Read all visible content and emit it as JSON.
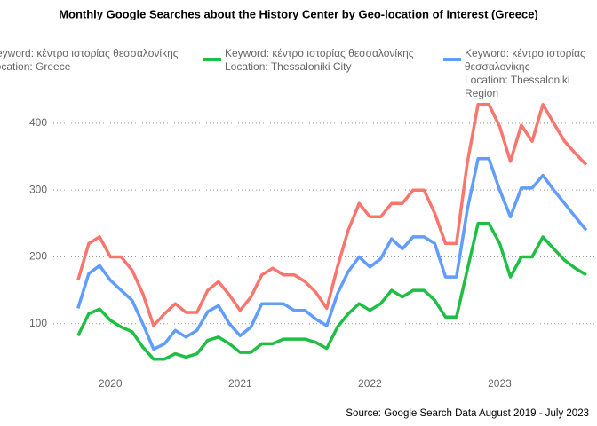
{
  "chart_data": {
    "type": "line",
    "title": "Monthly Google Searches about the History Center by Geo-location of Interest (Greece)",
    "caption": "Source: Google Search Data August 2019 - July 2023",
    "x": [
      2019.75,
      2019.833,
      2019.917,
      2020,
      2020.083,
      2020.167,
      2020.25,
      2020.333,
      2020.417,
      2020.5,
      2020.583,
      2020.667,
      2020.75,
      2020.833,
      2020.917,
      2021,
      2021.083,
      2021.167,
      2021.25,
      2021.333,
      2021.417,
      2021.5,
      2021.583,
      2021.667,
      2021.75,
      2021.833,
      2021.917,
      2022,
      2022.083,
      2022.167,
      2022.25,
      2022.333,
      2022.417,
      2022.5,
      2022.583,
      2022.667,
      2022.75,
      2022.833,
      2022.917,
      2023,
      2023.083,
      2023.167,
      2023.25,
      2023.333,
      2023.417,
      2023.5,
      2023.583,
      2023.667
    ],
    "xlim": [
      2019.56,
      2023.75
    ],
    "xticks": [
      2020,
      2021,
      2022,
      2023
    ],
    "ylim": [
      20,
      445
    ],
    "yticks": [
      100,
      200,
      300,
      400
    ],
    "grid": true,
    "series": [
      {
        "name": "Keyword: κέντρο ιστορίας θεσσαλονίκης\nLocation: Greece",
        "color": "#F8766D",
        "values": [
          165,
          220,
          230,
          200,
          200,
          180,
          145,
          97,
          115,
          130,
          117,
          117,
          150,
          163,
          143,
          120,
          140,
          173,
          183,
          173,
          173,
          163,
          147,
          123,
          185,
          240,
          280,
          260,
          260,
          280,
          280,
          300,
          300,
          265,
          220,
          220,
          340,
          428,
          428,
          395,
          343,
          397,
          373,
          428,
          400,
          373,
          355,
          338
        ]
      },
      {
        "name": "Keyword: κέντρο ιστορίας θεσσαλονίκης\nLocation: Thessaloniki City",
        "color": "#1FBF45",
        "values": [
          82,
          115,
          122,
          105,
          95,
          88,
          65,
          47,
          47,
          55,
          50,
          55,
          75,
          80,
          70,
          57,
          57,
          70,
          70,
          77,
          77,
          77,
          72,
          63,
          95,
          115,
          130,
          120,
          130,
          150,
          140,
          150,
          150,
          135,
          110,
          110,
          180,
          250,
          250,
          220,
          170,
          200,
          200,
          230,
          212,
          195,
          183,
          173
        ]
      },
      {
        "name": "Keyword: κέντρο ιστορίας θεσσαλονίκης\nLocation: Thessaloniki Region",
        "color": "#619CFF",
        "values": [
          123,
          175,
          187,
          165,
          150,
          135,
          100,
          62,
          70,
          90,
          80,
          90,
          118,
          127,
          100,
          82,
          95,
          130,
          130,
          130,
          120,
          120,
          107,
          97,
          145,
          178,
          200,
          185,
          197,
          227,
          212,
          230,
          230,
          220,
          170,
          170,
          270,
          347,
          347,
          300,
          260,
          303,
          303,
          322,
          300,
          280,
          260,
          240
        ]
      }
    ]
  }
}
